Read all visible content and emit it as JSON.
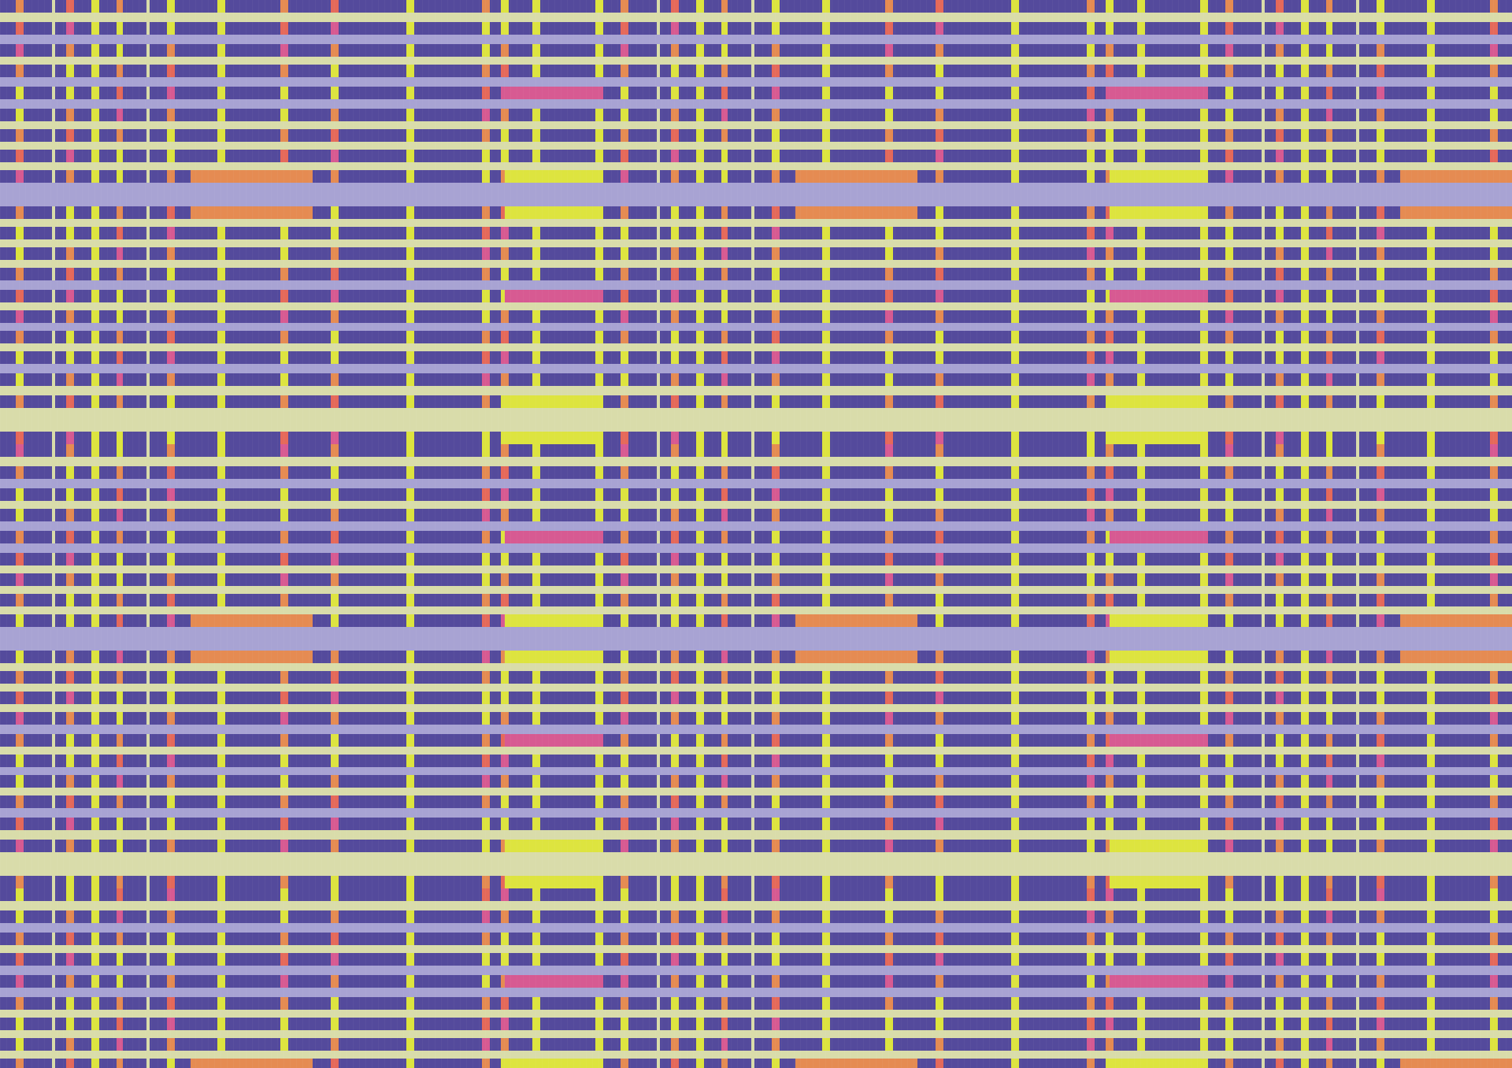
{
  "pattern": {
    "kind": "woven-plaid-texture",
    "colors": {
      "cream": "#d9dcaa",
      "deep_purple": "#544a9c",
      "lavender": "#a8a3d3",
      "chartreuse": "#dde43f",
      "orange": "#e58b52",
      "coral": "#e5695a",
      "pink": "#d75a92"
    },
    "warp_period_columns": 64,
    "weft_period_rows": 70,
    "weave_repeat_horizontal": 2.5,
    "weave_repeat_vertical": 2
  }
}
